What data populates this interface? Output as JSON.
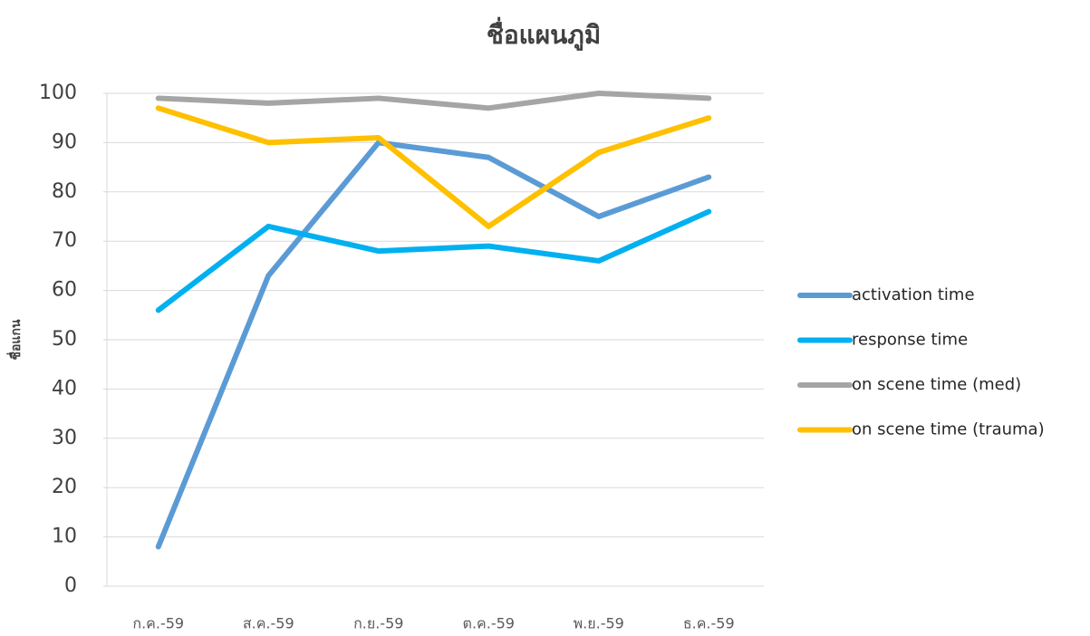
{
  "chart_data": {
    "type": "line",
    "title": "ชื่อแผนภูมิ",
    "y_label": "ชื่อแกน",
    "categories": [
      "ก.ค.-59",
      "ส.ค.-59",
      "ก.ย.-59",
      "ต.ค.-59",
      "พ.ย.-59",
      "ธ.ค.-59"
    ],
    "series": [
      {
        "name": "activation time",
        "color": "#5b9bd5",
        "values": [
          8,
          63,
          90,
          87,
          75,
          83
        ]
      },
      {
        "name": "response time",
        "color": "#00b0f0",
        "values": [
          56,
          73,
          68,
          69,
          66,
          76
        ]
      },
      {
        "name": "on scene time (med)",
        "color": "#a5a5a5",
        "values": [
          99,
          98,
          99,
          97,
          100,
          99
        ]
      },
      {
        "name": "on scene time (trauma)",
        "color": "#ffc000",
        "values": [
          97,
          90,
          91,
          73,
          88,
          95
        ]
      }
    ],
    "ylim": [
      0,
      100
    ],
    "yticks": [
      0,
      10,
      20,
      30,
      40,
      50,
      60,
      70,
      80,
      90,
      100
    ],
    "grid": true,
    "legend": "right"
  }
}
